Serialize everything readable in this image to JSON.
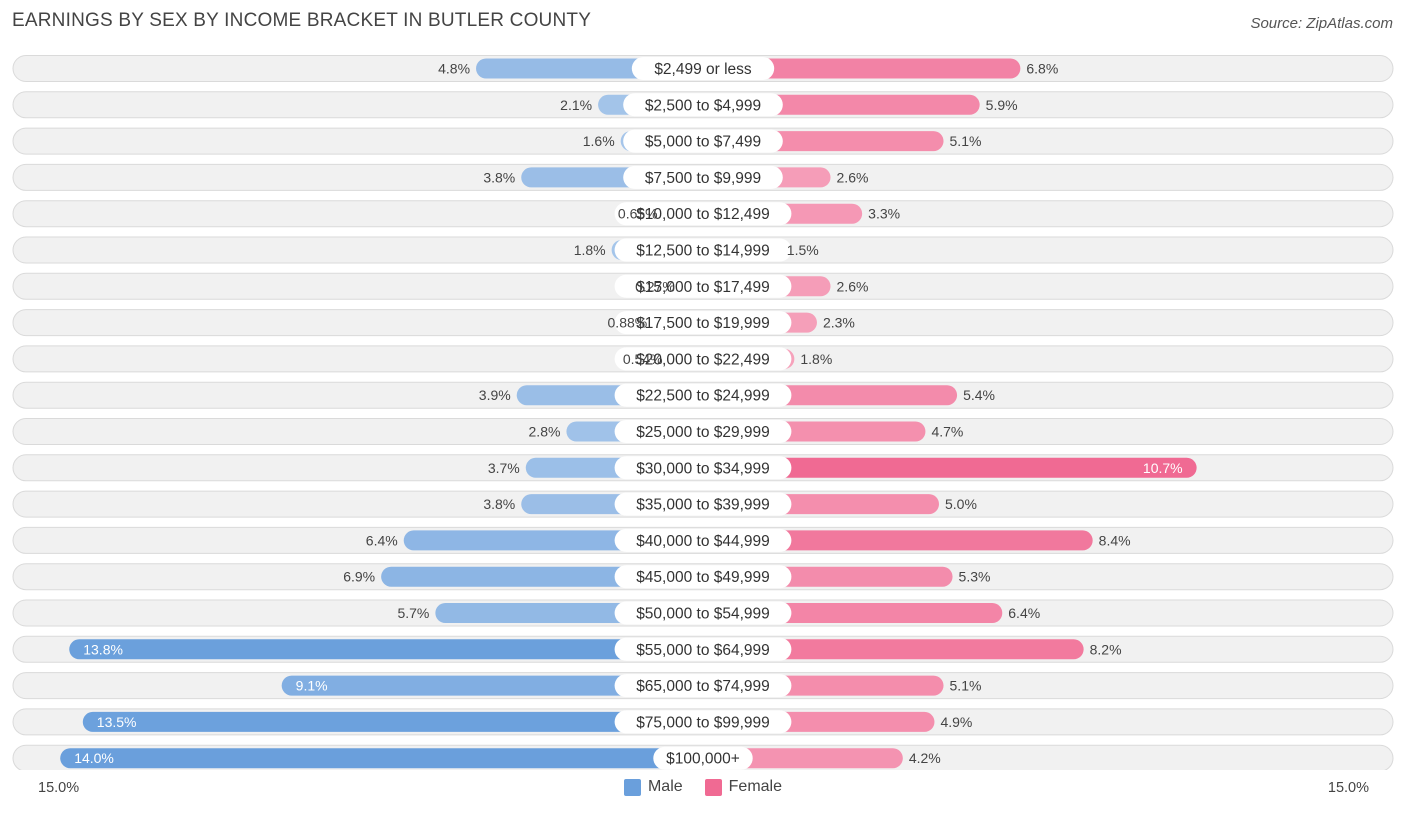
{
  "title": "EARNINGS BY SEX BY INCOME BRACKET IN BUTLER COUNTY",
  "source": "Source: ZipAtlas.com",
  "colors": {
    "male": "#6a9fdc",
    "female": "#f06a93"
  },
  "legend": {
    "male_label": "Male",
    "female_label": "Female"
  },
  "axis": {
    "left_label": "15.0%",
    "right_label": "15.0%"
  },
  "chart_data": {
    "type": "bar",
    "orientation": "horizontal-diverging",
    "title": "EARNINGS BY SEX BY INCOME BRACKET IN BUTLER COUNTY",
    "xlim": [
      -15,
      15
    ],
    "categories": [
      "$2,499 or less",
      "$2,500 to $4,999",
      "$5,000 to $7,499",
      "$7,500 to $9,999",
      "$10,000 to $12,499",
      "$12,500 to $14,999",
      "$15,000 to $17,499",
      "$17,500 to $19,999",
      "$20,000 to $22,499",
      "$22,500 to $24,999",
      "$25,000 to $29,999",
      "$30,000 to $34,999",
      "$35,000 to $39,999",
      "$40,000 to $44,999",
      "$45,000 to $49,999",
      "$50,000 to $54,999",
      "$55,000 to $64,999",
      "$65,000 to $74,999",
      "$75,000 to $99,999",
      "$100,000+"
    ],
    "series": [
      {
        "name": "Male",
        "values": [
          4.8,
          2.1,
          1.6,
          3.8,
          0.65,
          1.8,
          0.27,
          0.88,
          0.54,
          3.9,
          2.8,
          3.7,
          3.8,
          6.4,
          6.9,
          5.7,
          13.8,
          9.1,
          13.5,
          14.0
        ],
        "labels": [
          "4.8%",
          "2.1%",
          "1.6%",
          "3.8%",
          "0.65%",
          "1.8%",
          "0.27%",
          "0.88%",
          "0.54%",
          "3.9%",
          "2.8%",
          "3.7%",
          "3.8%",
          "6.4%",
          "6.9%",
          "5.7%",
          "13.8%",
          "9.1%",
          "13.5%",
          "14.0%"
        ]
      },
      {
        "name": "Female",
        "values": [
          6.8,
          5.9,
          5.1,
          2.6,
          3.3,
          1.5,
          2.6,
          2.3,
          1.8,
          5.4,
          4.7,
          10.7,
          5.0,
          8.4,
          5.3,
          6.4,
          8.2,
          5.1,
          4.9,
          4.2
        ],
        "labels": [
          "6.8%",
          "5.9%",
          "5.1%",
          "2.6%",
          "3.3%",
          "1.5%",
          "2.6%",
          "2.3%",
          "1.8%",
          "5.4%",
          "4.7%",
          "10.7%",
          "5.0%",
          "8.4%",
          "5.3%",
          "6.4%",
          "8.2%",
          "5.1%",
          "4.9%",
          "4.2%"
        ]
      }
    ]
  }
}
